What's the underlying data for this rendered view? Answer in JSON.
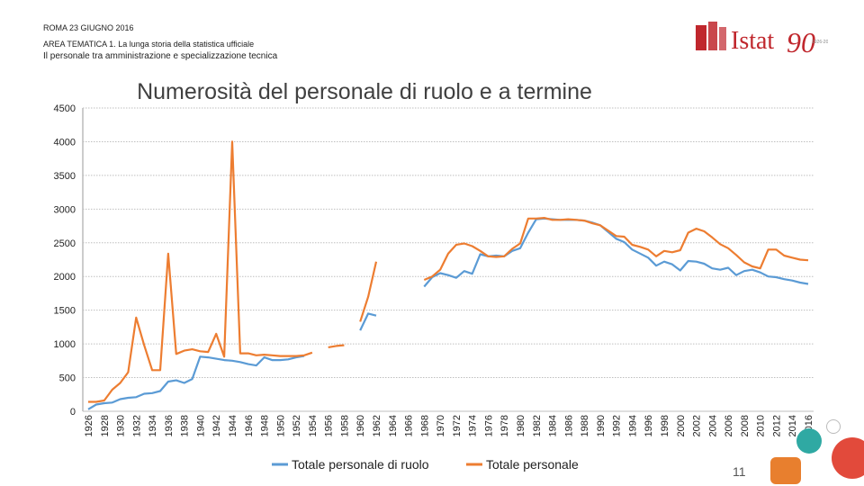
{
  "header": {
    "date": "ROMA 23 GIUGNO 2016",
    "area": "AREA TEMATICA 1. La lunga storia della statistica ufficiale",
    "subtitle": "Il personale tra amministrazione e specializzazione tecnica"
  },
  "logo": {
    "text": "Istat",
    "number": "90",
    "tagline": "1926-2016"
  },
  "slide_number": "11",
  "colors": {
    "ruolo": "#5b9bd5",
    "totale": "#ed7d31",
    "brand_red": "#c0272d",
    "grid": "#bfbfbf"
  },
  "chart_data": {
    "type": "line",
    "title": "Numerosità del personale di ruolo e a termine",
    "xlabel": "",
    "ylabel": "",
    "ylim": [
      0,
      4500
    ],
    "yticks": [
      0,
      500,
      1000,
      1500,
      2000,
      2500,
      3000,
      3500,
      4000,
      4500
    ],
    "xlim": [
      1926,
      2016
    ],
    "xticks": [
      1926,
      1928,
      1930,
      1932,
      1934,
      1936,
      1938,
      1940,
      1942,
      1944,
      1946,
      1948,
      1950,
      1952,
      1954,
      1956,
      1958,
      1960,
      1962,
      1964,
      1966,
      1968,
      1970,
      1972,
      1974,
      1976,
      1978,
      1980,
      1982,
      1984,
      1986,
      1988,
      1990,
      1992,
      1994,
      1996,
      1998,
      2000,
      2002,
      2004,
      2006,
      2008,
      2010,
      2012,
      2014,
      2016
    ],
    "grid": true,
    "legend_position": "bottom",
    "series": [
      {
        "name": "Totale personale di ruolo",
        "color_key": "ruolo",
        "segments": [
          [
            [
              1926,
              30
            ],
            [
              1927,
              100
            ],
            [
              1928,
              120
            ],
            [
              1929,
              130
            ],
            [
              1930,
              180
            ],
            [
              1931,
              200
            ],
            [
              1932,
              210
            ],
            [
              1933,
              260
            ],
            [
              1934,
              270
            ],
            [
              1935,
              300
            ],
            [
              1936,
              440
            ],
            [
              1937,
              460
            ],
            [
              1938,
              420
            ],
            [
              1939,
              480
            ],
            [
              1940,
              810
            ],
            [
              1941,
              800
            ],
            [
              1942,
              780
            ],
            [
              1943,
              760
            ],
            [
              1944,
              750
            ],
            [
              1945,
              730
            ],
            [
              1946,
              700
            ],
            [
              1947,
              680
            ],
            [
              1948,
              800
            ],
            [
              1949,
              760
            ],
            [
              1950,
              760
            ],
            [
              1951,
              770
            ],
            [
              1952,
              800
            ],
            [
              1953,
              820
            ]
          ],
          [
            [
              1960,
              1200
            ],
            [
              1961,
              1450
            ],
            [
              1962,
              1420
            ]
          ],
          [
            [
              1968,
              1850
            ],
            [
              1969,
              1990
            ],
            [
              1970,
              2050
            ],
            [
              1971,
              2020
            ],
            [
              1972,
              1980
            ],
            [
              1973,
              2080
            ],
            [
              1974,
              2040
            ],
            [
              1975,
              2330
            ],
            [
              1976,
              2300
            ],
            [
              1977,
              2310
            ],
            [
              1978,
              2300
            ],
            [
              1979,
              2380
            ],
            [
              1980,
              2420
            ],
            [
              1981,
              2650
            ],
            [
              1982,
              2850
            ],
            [
              1983,
              2860
            ],
            [
              1984,
              2850
            ],
            [
              1985,
              2840
            ],
            [
              1986,
              2840
            ],
            [
              1987,
              2840
            ],
            [
              1988,
              2830
            ],
            [
              1989,
              2800
            ],
            [
              1990,
              2760
            ],
            [
              1991,
              2660
            ],
            [
              1992,
              2560
            ],
            [
              1993,
              2510
            ],
            [
              1994,
              2400
            ],
            [
              1995,
              2340
            ],
            [
              1996,
              2280
            ],
            [
              1997,
              2160
            ],
            [
              1998,
              2220
            ],
            [
              1999,
              2180
            ],
            [
              2000,
              2090
            ],
            [
              2001,
              2230
            ],
            [
              2002,
              2220
            ],
            [
              2003,
              2190
            ],
            [
              2004,
              2120
            ],
            [
              2005,
              2100
            ],
            [
              2006,
              2130
            ],
            [
              2007,
              2020
            ],
            [
              2008,
              2080
            ],
            [
              2009,
              2100
            ],
            [
              2010,
              2060
            ],
            [
              2011,
              2000
            ],
            [
              2012,
              1990
            ],
            [
              2013,
              1960
            ],
            [
              2014,
              1940
            ],
            [
              2015,
              1910
            ],
            [
              2016,
              1890
            ]
          ]
        ]
      },
      {
        "name": "Totale personale",
        "color_key": "totale",
        "segments": [
          [
            [
              1926,
              140
            ],
            [
              1927,
              140
            ],
            [
              1928,
              160
            ],
            [
              1929,
              320
            ],
            [
              1930,
              420
            ],
            [
              1931,
              580
            ],
            [
              1932,
              1390
            ],
            [
              1933,
              980
            ],
            [
              1934,
              610
            ],
            [
              1935,
              610
            ],
            [
              1936,
              2340
            ],
            [
              1937,
              850
            ],
            [
              1938,
              900
            ],
            [
              1939,
              920
            ],
            [
              1940,
              890
            ],
            [
              1941,
              880
            ],
            [
              1942,
              1150
            ],
            [
              1943,
              810
            ],
            [
              1944,
              4000
            ],
            [
              1945,
              860
            ],
            [
              1946,
              860
            ],
            [
              1947,
              830
            ],
            [
              1948,
              840
            ],
            [
              1949,
              830
            ],
            [
              1950,
              820
            ],
            [
              1951,
              820
            ],
            [
              1952,
              820
            ],
            [
              1953,
              830
            ],
            [
              1954,
              870
            ]
          ],
          [
            [
              1956,
              950
            ],
            [
              1957,
              970
            ],
            [
              1958,
              980
            ]
          ],
          [
            [
              1960,
              1330
            ],
            [
              1961,
              1700
            ],
            [
              1962,
              2220
            ]
          ],
          [
            [
              1968,
              1950
            ],
            [
              1969,
              2000
            ],
            [
              1970,
              2100
            ],
            [
              1971,
              2340
            ],
            [
              1972,
              2470
            ],
            [
              1973,
              2490
            ],
            [
              1974,
              2450
            ],
            [
              1975,
              2380
            ],
            [
              1976,
              2300
            ],
            [
              1977,
              2290
            ],
            [
              1978,
              2300
            ],
            [
              1979,
              2410
            ],
            [
              1980,
              2490
            ],
            [
              1981,
              2860
            ],
            [
              1982,
              2860
            ],
            [
              1983,
              2870
            ],
            [
              1984,
              2840
            ],
            [
              1985,
              2840
            ],
            [
              1986,
              2850
            ],
            [
              1987,
              2840
            ],
            [
              1988,
              2830
            ],
            [
              1989,
              2790
            ],
            [
              1990,
              2760
            ],
            [
              1991,
              2680
            ],
            [
              1992,
              2600
            ],
            [
              1993,
              2590
            ],
            [
              1994,
              2470
            ],
            [
              1995,
              2440
            ],
            [
              1996,
              2400
            ],
            [
              1997,
              2300
            ],
            [
              1998,
              2380
            ],
            [
              1999,
              2360
            ],
            [
              2000,
              2390
            ],
            [
              2001,
              2650
            ],
            [
              2002,
              2710
            ],
            [
              2003,
              2670
            ],
            [
              2004,
              2580
            ],
            [
              2005,
              2480
            ],
            [
              2006,
              2420
            ],
            [
              2007,
              2320
            ],
            [
              2008,
              2210
            ],
            [
              2009,
              2150
            ],
            [
              2010,
              2120
            ],
            [
              2011,
              2400
            ],
            [
              2012,
              2400
            ],
            [
              2013,
              2310
            ],
            [
              2014,
              2280
            ],
            [
              2015,
              2250
            ],
            [
              2016,
              2240
            ]
          ]
        ]
      }
    ]
  }
}
